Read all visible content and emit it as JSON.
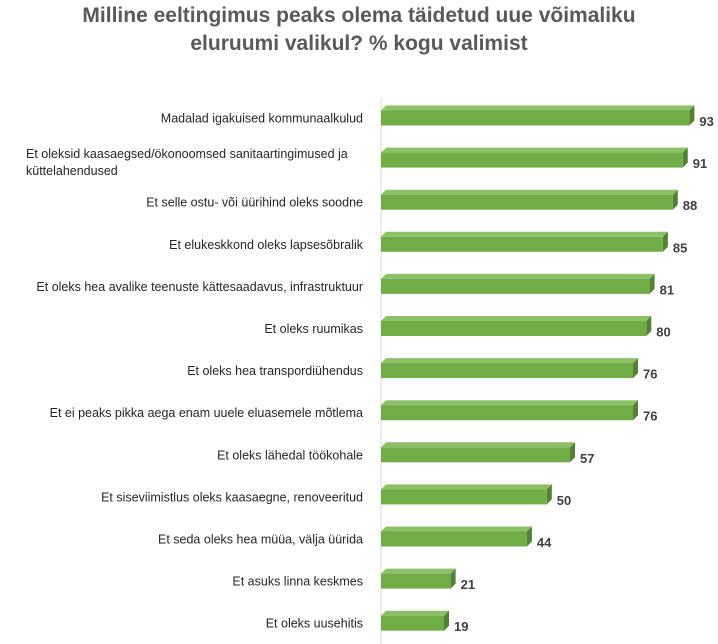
{
  "chart_data": {
    "type": "bar",
    "orientation": "horizontal",
    "title": [
      "Milline eeltingimus peaks olema täidetud uue võimaliku",
      "eluruumi valikul? % kogu valimist"
    ],
    "categories": [
      "Madalad igakuised kommunaalkulud",
      "Et oleksid kaasaegsed/ökonoomsed sanitaartingimused ja küttelahendused",
      "Et selle ostu- või üürihind oleks soodne",
      "Et elukeskkond oleks lapsesõbralik",
      "Et oleks hea avalike teenuste kättesaadavus, infrastruktuur",
      "Et oleks ruumikas",
      "Et oleks hea transpordiühendus",
      "Et ei peaks pikka aega enam uuele eluasemele mõtlema",
      "Et oleks lähedal töökohale",
      "Et siseviimistlus oleks kaasaegne, renoveeritud",
      "Et seda oleks hea müüa, välja üürida",
      "Et asuks linna keskmes",
      "Et oleks uusehitis"
    ],
    "values": [
      93,
      91,
      88,
      85,
      81,
      80,
      76,
      76,
      57,
      50,
      44,
      21,
      19
    ],
    "xlim": [
      0,
      100
    ],
    "bar_color": "#70ad47",
    "bar_edge_color": "#548235",
    "grid": false,
    "legend": false
  }
}
